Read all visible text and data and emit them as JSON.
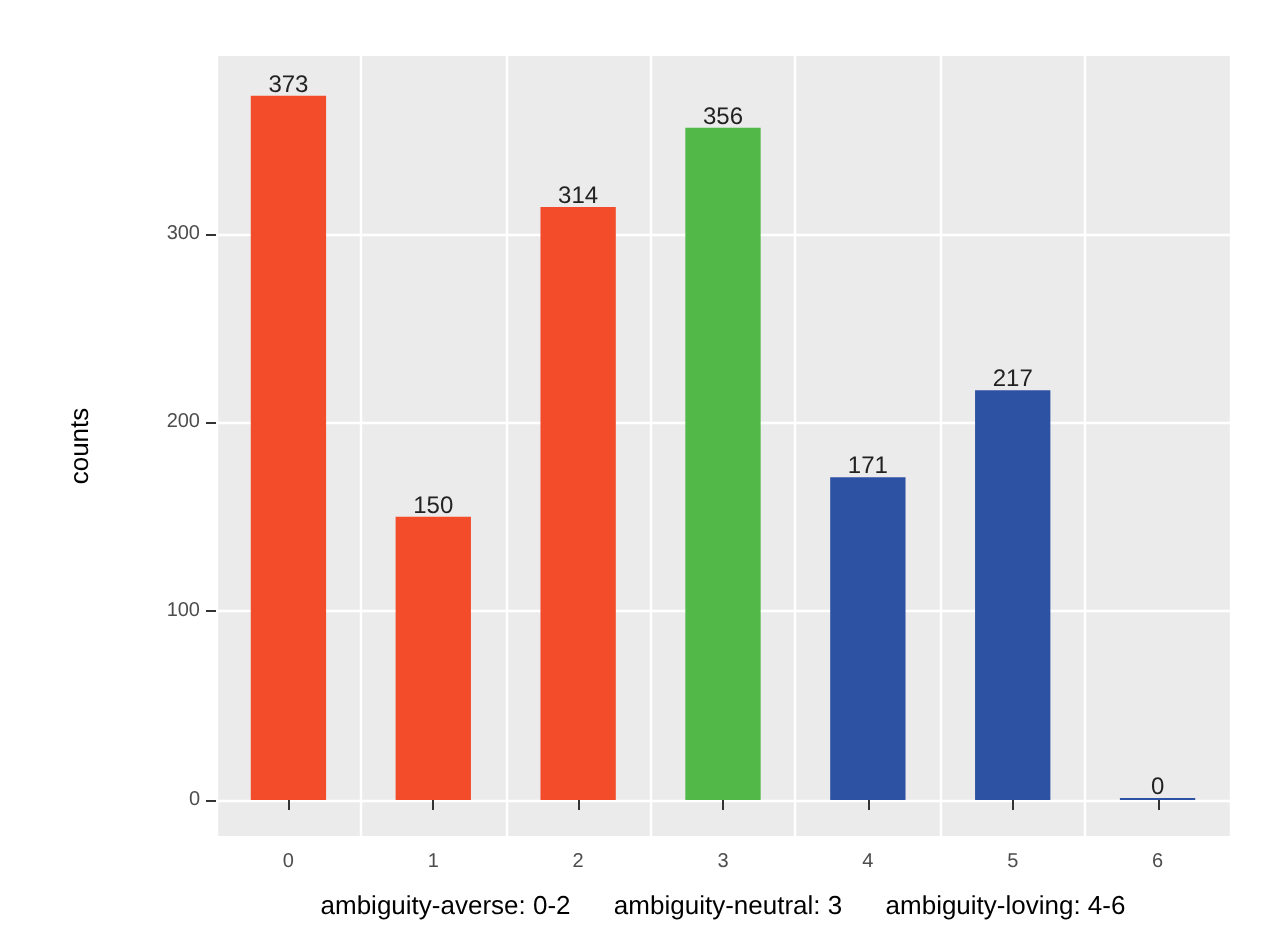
{
  "chart_data": {
    "type": "bar",
    "xlabel": "ambiguity-averse: 0-2      ambiguity-neutral: 3      ambiguity-loving: 4-6",
    "ylabel": "counts",
    "categories": [
      "0",
      "1",
      "2",
      "3",
      "4",
      "5",
      "6"
    ],
    "values": [
      373,
      150,
      314,
      356,
      171,
      217,
      0
    ],
    "colors": [
      "#f24c2b",
      "#f24c2b",
      "#f24c2b",
      "#52b848",
      "#2e52a3",
      "#2e52a3",
      "#2e52a3"
    ],
    "ylim": [
      -19,
      394
    ],
    "yticks": [
      0,
      100,
      200,
      300
    ],
    "grid": true,
    "data_labels": true
  }
}
